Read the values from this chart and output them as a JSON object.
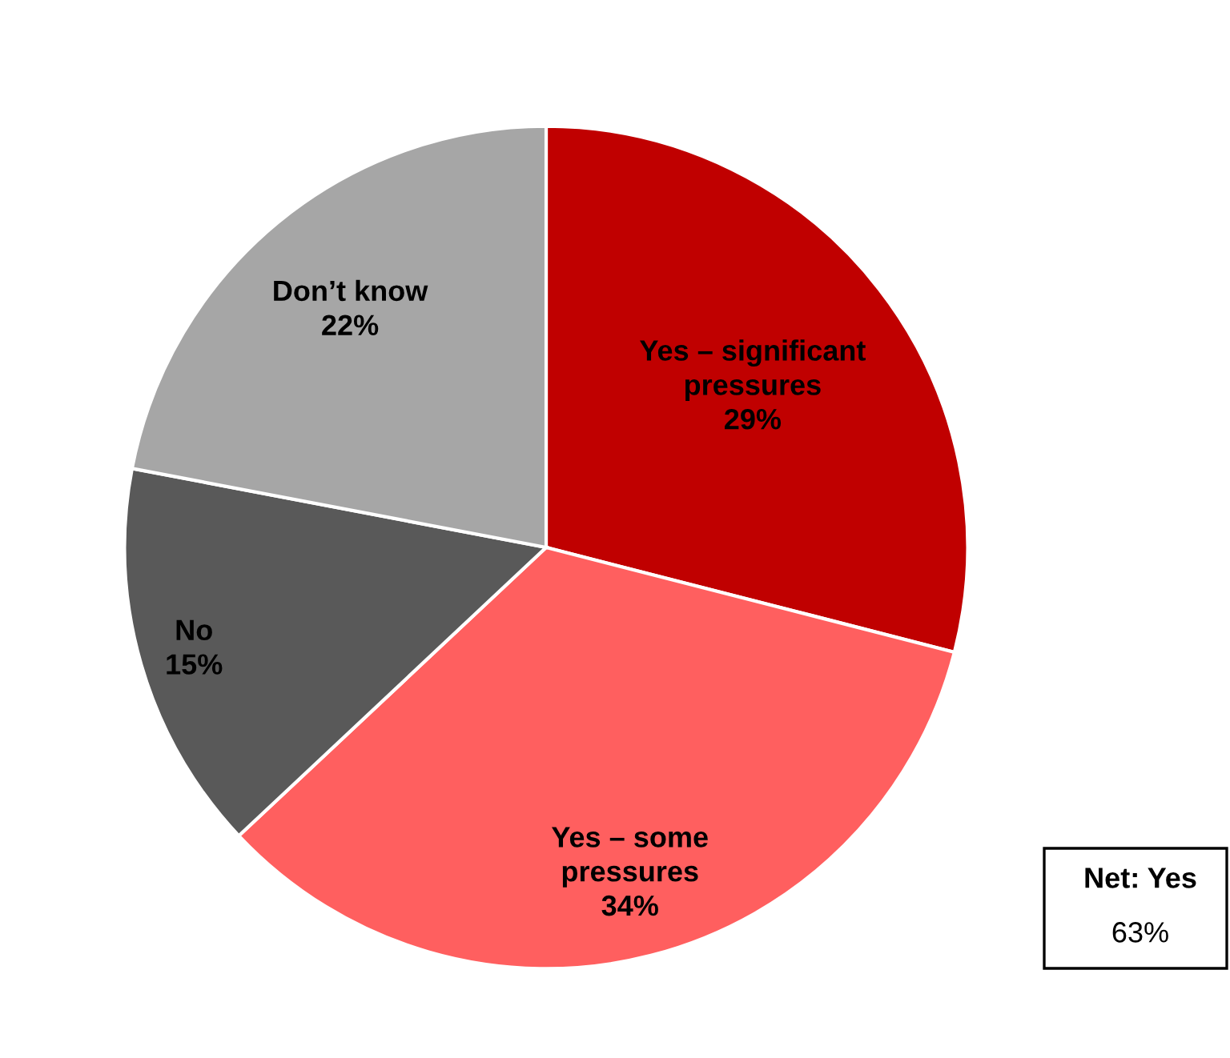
{
  "chart_data": {
    "type": "pie",
    "categories": [
      "Yes – significant\npressures",
      "Yes – some\npressures",
      "No",
      "Don’t know"
    ],
    "values": [
      29,
      34,
      15,
      22
    ],
    "colors": [
      "#c00000",
      "#ff5f5f",
      "#595959",
      "#a6a6a6"
    ],
    "value_labels": [
      "29%",
      "34%",
      "15%",
      "22%"
    ],
    "legend": false,
    "annotations": [
      "Net: Yes",
      "63%"
    ]
  }
}
